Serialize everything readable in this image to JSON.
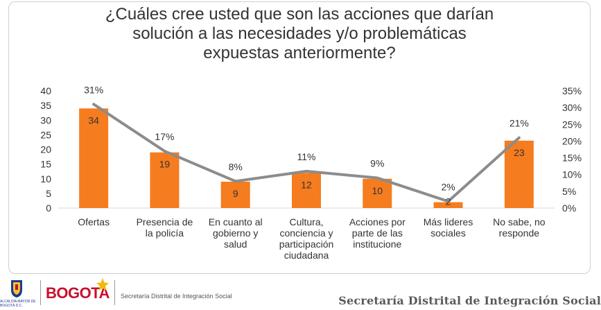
{
  "chart_data": {
    "type": "bar",
    "title_lines": [
      "¿Cuáles cree usted que son las acciones que darían",
      "solución a las necesidades y/o problemáticas",
      "expuestas anteriormente?"
    ],
    "categories": [
      [
        "Ofertas"
      ],
      [
        "Presencia de",
        "la policía"
      ],
      [
        "En cuanto al",
        "gobierno y",
        "salud"
      ],
      [
        "Cultura,",
        "conciencia y",
        "participación",
        "ciudadana"
      ],
      [
        "Acciones por",
        "parte de las",
        "institucione"
      ],
      [
        "Más lideres",
        "sociales"
      ],
      [
        "No sabe, no",
        "responde"
      ]
    ],
    "series": [
      {
        "type": "bar",
        "axis": "left",
        "values": [
          34,
          19,
          9,
          12,
          10,
          2,
          23
        ],
        "data_labels": [
          "34",
          "19",
          "9",
          "12",
          "10",
          "2",
          "23"
        ]
      },
      {
        "type": "line",
        "axis": "right",
        "values": [
          31,
          17,
          8,
          11,
          9,
          2,
          21
        ],
        "data_labels": [
          "31%",
          "17%",
          "8%",
          "11%",
          "9%",
          "2%",
          "21%"
        ]
      }
    ],
    "left_axis": {
      "min": 0,
      "max": 40,
      "ticks": [
        "0",
        "5",
        "10",
        "15",
        "20",
        "25",
        "30",
        "35",
        "40"
      ]
    },
    "right_axis": {
      "min": 0,
      "max": 35,
      "ticks": [
        "0%",
        "5%",
        "10%",
        "15%",
        "20%",
        "25%",
        "30%",
        "35%"
      ]
    },
    "grid": false,
    "colors": {
      "bar": "#f57c1f",
      "line": "#8c8c8c",
      "text": "#333333"
    }
  },
  "footer": {
    "crest_caption": "ALCALDÍA MAYOR DE BOGOTÁ D.C.",
    "bogota": "BOGOTA",
    "entity_small": "Secretaría Distrital de Integración Social",
    "entity_big": "Secretaría Distrital de Integración Social"
  }
}
